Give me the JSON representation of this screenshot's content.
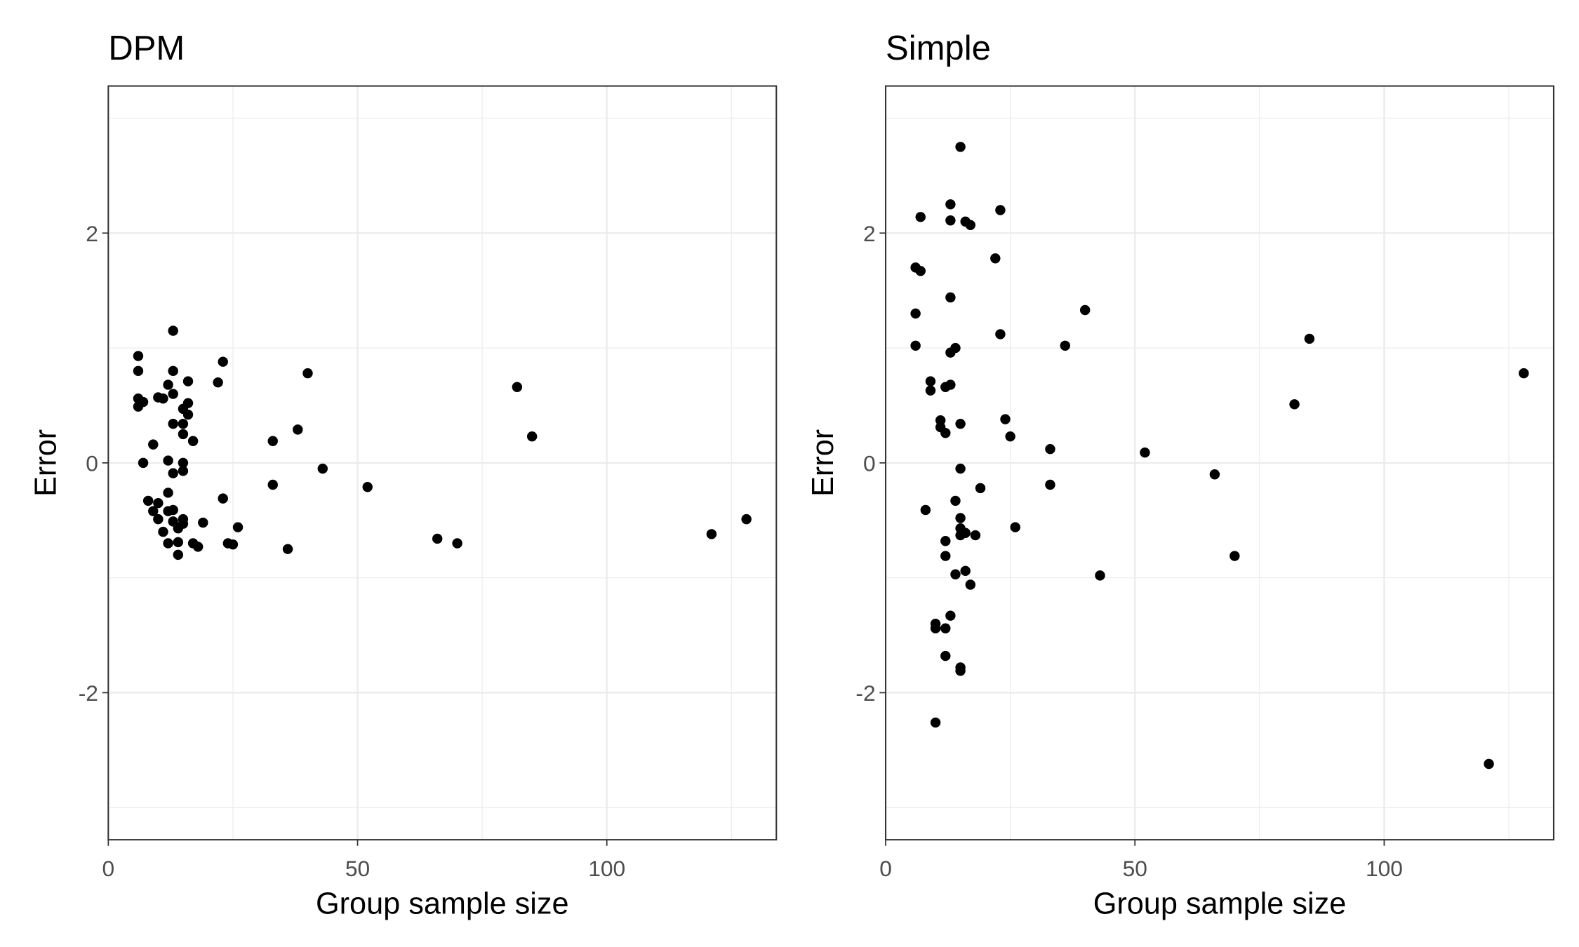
{
  "chart_data": [
    {
      "type": "scatter",
      "title": "DPM",
      "x_label": "Group sample size",
      "y_label": "Error",
      "xlim": [
        0,
        134
      ],
      "ylim": [
        -3.28,
        3.28
      ],
      "xticks": [
        0,
        50,
        100
      ],
      "yticks": [
        -2,
        0,
        2
      ],
      "x_minor_grid": [
        25,
        75,
        125
      ],
      "y_minor_grid": [
        -3,
        -1,
        1,
        3
      ],
      "grid": true,
      "color": "#000000",
      "x": [
        6,
        6,
        6,
        6,
        7,
        13,
        7,
        8,
        9,
        9,
        10,
        10,
        10,
        11,
        11,
        12,
        12,
        12,
        12,
        12,
        13,
        13,
        13,
        13,
        13,
        13,
        14,
        14,
        14,
        15,
        15,
        15,
        15,
        15,
        15,
        15,
        16,
        16,
        16,
        17,
        17,
        18,
        19,
        22,
        23,
        23,
        24,
        25,
        26,
        33,
        33,
        36,
        38,
        40,
        43,
        52,
        66,
        70,
        82,
        85,
        121,
        128
      ],
      "values": [
        0.93,
        0.8,
        0.56,
        0.49,
        0.53,
        1.15,
        0,
        -0.33,
        0.16,
        -0.42,
        0.57,
        -0.35,
        -0.49,
        0.56,
        -0.6,
        0.68,
        0.02,
        -0.26,
        -0.42,
        -0.7,
        0.8,
        0.6,
        0.34,
        -0.09,
        -0.41,
        -0.51,
        -0.57,
        -0.69,
        -0.8,
        0.47,
        0.34,
        0.25,
        0,
        -0.07,
        -0.49,
        -0.53,
        0.71,
        0.52,
        0.42,
        0.19,
        -0.7,
        -0.73,
        -0.52,
        0.7,
        0.88,
        -0.31,
        -0.7,
        -0.71,
        -0.56,
        0.19,
        -0.19,
        -0.75,
        0.29,
        0.78,
        -0.05,
        -0.21,
        -0.66,
        -0.7,
        0.66,
        0.23,
        -0.62,
        -0.49
      ]
    },
    {
      "type": "scatter",
      "title": "Simple",
      "x_label": "Group sample size",
      "y_label": "Error",
      "xlim": [
        0,
        134
      ],
      "ylim": [
        -3.28,
        3.28
      ],
      "xticks": [
        0,
        50,
        100
      ],
      "yticks": [
        -2,
        0,
        2
      ],
      "x_minor_grid": [
        25,
        75,
        125
      ],
      "y_minor_grid": [
        -3,
        -1,
        1,
        3
      ],
      "grid": true,
      "color": "#000000",
      "x": [
        15,
        13,
        7,
        13,
        16,
        17,
        23,
        22,
        6,
        7,
        13,
        6,
        40,
        23,
        6,
        14,
        13,
        36,
        85,
        128,
        9,
        9,
        13,
        12,
        82,
        11,
        11,
        12,
        15,
        24,
        25,
        33,
        52,
        15,
        66,
        33,
        19,
        8,
        14,
        15,
        15,
        15,
        16,
        18,
        26,
        12,
        12,
        70,
        14,
        16,
        17,
        43,
        13,
        10,
        10,
        12,
        12,
        15,
        15,
        10,
        121
      ],
      "values": [
        2.75,
        2.25,
        2.14,
        2.11,
        2.1,
        2.07,
        2.2,
        1.78,
        1.7,
        1.67,
        1.44,
        1.3,
        1.33,
        1.12,
        1.02,
        1.0,
        0.96,
        1.02,
        1.08,
        0.78,
        0.71,
        0.63,
        0.68,
        0.66,
        0.51,
        0.37,
        0.31,
        0.26,
        0.34,
        0.38,
        0.23,
        0.12,
        0.09,
        -0.05,
        -0.1,
        -0.19,
        -0.22,
        -0.41,
        -0.33,
        -0.48,
        -0.57,
        -0.63,
        -0.61,
        -0.63,
        -0.56,
        -0.68,
        -0.81,
        -0.81,
        -0.97,
        -0.94,
        -1.06,
        -0.98,
        -1.33,
        -1.4,
        -1.44,
        -1.44,
        -1.68,
        -1.78,
        -1.81,
        -2.26,
        -2.62
      ]
    }
  ]
}
